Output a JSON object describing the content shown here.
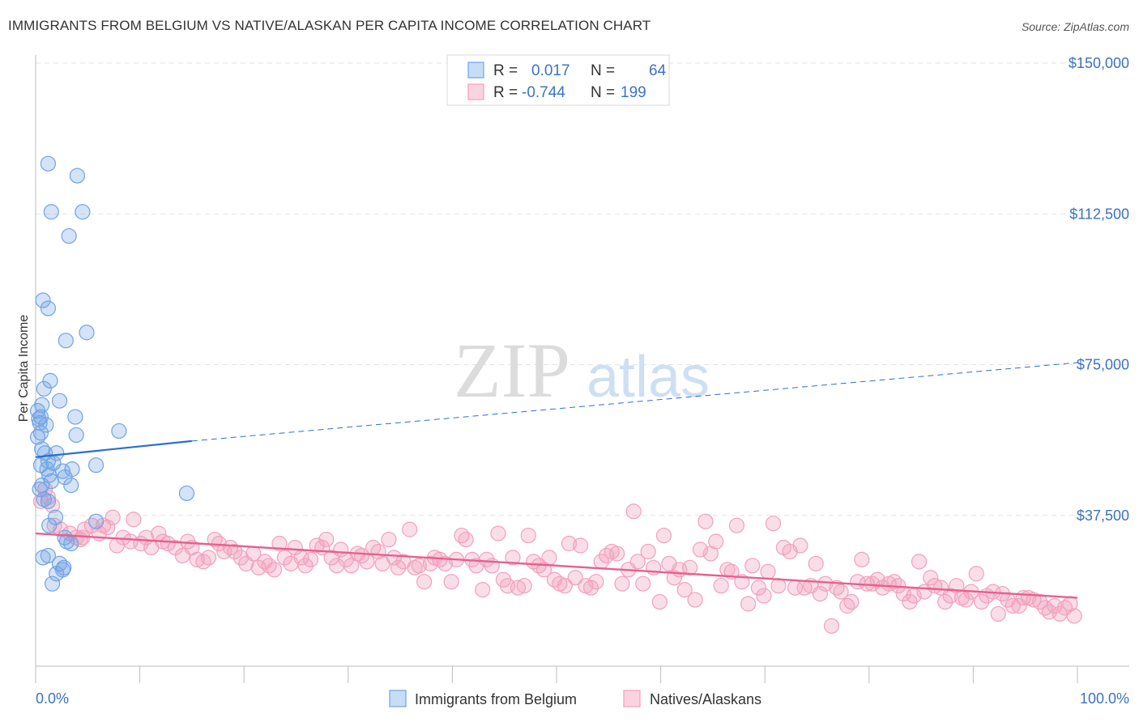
{
  "title": "IMMIGRANTS FROM BELGIUM VS NATIVE/ALASKAN PER CAPITA INCOME CORRELATION CHART",
  "source": "Source: ZipAtlas.com",
  "watermark": {
    "zip": "ZIP",
    "atlas": "atlas"
  },
  "chart_data": {
    "type": "scatter",
    "title": "IMMIGRANTS FROM BELGIUM VS NATIVE/ALASKAN PER CAPITA INCOME CORRELATION CHART",
    "xlabel": "",
    "ylabel": "Per Capita Income",
    "xlim": [
      0,
      100
    ],
    "ylim": [
      0,
      150000
    ],
    "x_tick_labels": [
      "0.0%",
      "100.0%"
    ],
    "y_ticks": [
      37500,
      75000,
      112500,
      150000
    ],
    "y_tick_labels": [
      "$37,500",
      "$75,000",
      "$112,500",
      "$150,000"
    ],
    "legend": {
      "position": "top-center",
      "rows": [
        {
          "r_label": "R =",
          "r_value": "0.017",
          "n_label": "N =",
          "n_value": "64"
        },
        {
          "r_label": "R =",
          "r_value": "-0.744",
          "n_label": "N =",
          "n_value": "199"
        }
      ]
    },
    "series": [
      {
        "name": "Immigrants from Belgium",
        "color": "#6fa3e6",
        "line_color": "#2a6fd0",
        "trend": {
          "x": [
            0,
            15
          ],
          "y": [
            52000,
            56000
          ],
          "dashed_extension_to": [
            100,
            75500
          ]
        },
        "points": [
          [
            1.2,
            125000
          ],
          [
            4.0,
            122000
          ],
          [
            1.5,
            113000
          ],
          [
            4.5,
            113000
          ],
          [
            3.2,
            107000
          ],
          [
            0.7,
            91000
          ],
          [
            1.2,
            89000
          ],
          [
            4.9,
            83000
          ],
          [
            2.9,
            81000
          ],
          [
            1.4,
            71000
          ],
          [
            0.8,
            69000
          ],
          [
            2.3,
            66000
          ],
          [
            0.6,
            65000
          ],
          [
            0.2,
            63500
          ],
          [
            0.5,
            62000
          ],
          [
            0.3,
            61500
          ],
          [
            0.4,
            60500
          ],
          [
            1.0,
            60000
          ],
          [
            3.8,
            62000
          ],
          [
            0.5,
            58000
          ],
          [
            3.9,
            57500
          ],
          [
            8.0,
            58500
          ],
          [
            0.2,
            57000
          ],
          [
            0.6,
            54000
          ],
          [
            0.9,
            53000
          ],
          [
            2.0,
            53000
          ],
          [
            1.2,
            51000
          ],
          [
            1.7,
            50500
          ],
          [
            0.5,
            50000
          ],
          [
            3.5,
            49000
          ],
          [
            5.8,
            50000
          ],
          [
            1.1,
            49000
          ],
          [
            2.6,
            48500
          ],
          [
            1.3,
            47500
          ],
          [
            2.8,
            47000
          ],
          [
            1.5,
            46000
          ],
          [
            0.6,
            45000
          ],
          [
            3.4,
            45000
          ],
          [
            0.4,
            44000
          ],
          [
            14.5,
            43000
          ],
          [
            0.8,
            41500
          ],
          [
            1.2,
            41000
          ],
          [
            1.9,
            37000
          ],
          [
            5.8,
            36000
          ],
          [
            1.3,
            35000
          ],
          [
            2.8,
            32000
          ],
          [
            3.0,
            31000
          ],
          [
            3.4,
            30500
          ],
          [
            0.7,
            27000
          ],
          [
            1.2,
            27500
          ],
          [
            2.3,
            25500
          ],
          [
            2.7,
            24500
          ],
          [
            2.6,
            24000
          ],
          [
            2.0,
            23000
          ],
          [
            1.6,
            20500
          ]
        ]
      },
      {
        "name": "Natives/Alaskans",
        "color": "#f2a0bb",
        "line_color": "#e85f8f",
        "trend": {
          "x": [
            0,
            100
          ],
          "y": [
            33000,
            17000
          ]
        },
        "points": [
          [
            0.5,
            41000
          ],
          [
            0.9,
            44000
          ],
          [
            1.2,
            42000
          ],
          [
            1.6,
            40000
          ],
          [
            1.8,
            35000
          ],
          [
            2.4,
            34000
          ],
          [
            3.3,
            33000
          ],
          [
            3.9,
            32000
          ],
          [
            4.3,
            31500
          ],
          [
            4.7,
            34000
          ],
          [
            5.4,
            35000
          ],
          [
            6.1,
            33000
          ],
          [
            6.9,
            34500
          ],
          [
            7.4,
            37000
          ],
          [
            7.8,
            30000
          ],
          [
            8.4,
            32000
          ],
          [
            9.1,
            31000
          ],
          [
            9.4,
            36500
          ],
          [
            10.1,
            30500
          ],
          [
            10.6,
            32000
          ],
          [
            11.1,
            29500
          ],
          [
            11.8,
            33000
          ],
          [
            12.2,
            31000
          ],
          [
            12.7,
            30500
          ],
          [
            13.4,
            29500
          ],
          [
            14.1,
            27500
          ],
          [
            14.6,
            31000
          ],
          [
            15.0,
            29500
          ],
          [
            15.5,
            26500
          ],
          [
            16.1,
            26000
          ],
          [
            16.6,
            27000
          ],
          [
            17.2,
            31500
          ],
          [
            17.6,
            30500
          ],
          [
            18.1,
            28500
          ],
          [
            18.7,
            29500
          ],
          [
            19.1,
            28500
          ],
          [
            19.7,
            27000
          ],
          [
            20.2,
            25500
          ],
          [
            20.9,
            28000
          ],
          [
            21.4,
            24500
          ],
          [
            22.0,
            26000
          ],
          [
            22.4,
            25000
          ],
          [
            22.9,
            24000
          ],
          [
            23.4,
            30500
          ],
          [
            23.9,
            27000
          ],
          [
            24.5,
            25500
          ],
          [
            24.9,
            29500
          ],
          [
            25.5,
            27000
          ],
          [
            25.9,
            25000
          ],
          [
            26.4,
            26500
          ],
          [
            27.0,
            30000
          ],
          [
            27.5,
            29500
          ],
          [
            27.9,
            31500
          ],
          [
            28.4,
            27000
          ],
          [
            28.9,
            25000
          ],
          [
            29.3,
            29000
          ],
          [
            29.8,
            26500
          ],
          [
            30.3,
            25000
          ],
          [
            30.9,
            28000
          ],
          [
            31.3,
            27500
          ],
          [
            31.8,
            26000
          ],
          [
            32.4,
            29500
          ],
          [
            32.9,
            28500
          ],
          [
            33.3,
            25500
          ],
          [
            33.9,
            31500
          ],
          [
            34.4,
            27000
          ],
          [
            34.8,
            24500
          ],
          [
            35.3,
            26000
          ],
          [
            35.9,
            34000
          ],
          [
            36.4,
            24500
          ],
          [
            36.8,
            25000
          ],
          [
            37.3,
            21000
          ],
          [
            37.9,
            25500
          ],
          [
            38.3,
            27000
          ],
          [
            38.8,
            26500
          ],
          [
            39.3,
            25500
          ],
          [
            39.9,
            21000
          ],
          [
            40.4,
            26500
          ],
          [
            40.9,
            32500
          ],
          [
            41.3,
            31500
          ],
          [
            41.9,
            26500
          ],
          [
            42.3,
            25000
          ],
          [
            42.9,
            19000
          ],
          [
            43.3,
            26500
          ],
          [
            43.8,
            25000
          ],
          [
            44.4,
            33000
          ],
          [
            44.9,
            21500
          ],
          [
            45.3,
            20000
          ],
          [
            45.8,
            27000
          ],
          [
            46.3,
            19500
          ],
          [
            46.9,
            20000
          ],
          [
            47.3,
            32500
          ],
          [
            47.8,
            26000
          ],
          [
            48.3,
            25000
          ],
          [
            48.8,
            24000
          ],
          [
            49.3,
            27000
          ],
          [
            49.8,
            21500
          ],
          [
            50.3,
            20500
          ],
          [
            50.8,
            20000
          ],
          [
            51.2,
            30500
          ],
          [
            51.8,
            22000
          ],
          [
            52.3,
            30000
          ],
          [
            52.8,
            20000
          ],
          [
            53.3,
            19500
          ],
          [
            53.8,
            21000
          ],
          [
            54.3,
            26000
          ],
          [
            54.8,
            27500
          ],
          [
            55.3,
            28500
          ],
          [
            55.8,
            28000
          ],
          [
            56.3,
            20500
          ],
          [
            56.9,
            24000
          ],
          [
            57.4,
            38500
          ],
          [
            57.8,
            26000
          ],
          [
            58.3,
            20500
          ],
          [
            58.8,
            28500
          ],
          [
            59.3,
            24500
          ],
          [
            59.9,
            16000
          ],
          [
            60.3,
            32500
          ],
          [
            60.8,
            25500
          ],
          [
            61.3,
            22000
          ],
          [
            61.8,
            24000
          ],
          [
            62.3,
            19000
          ],
          [
            62.8,
            24500
          ],
          [
            63.3,
            16500
          ],
          [
            63.8,
            29000
          ],
          [
            64.3,
            36000
          ],
          [
            64.8,
            28000
          ],
          [
            65.3,
            31000
          ],
          [
            65.8,
            20000
          ],
          [
            66.4,
            24000
          ],
          [
            66.8,
            23500
          ],
          [
            67.3,
            35000
          ],
          [
            67.8,
            21000
          ],
          [
            68.4,
            15500
          ],
          [
            68.8,
            25000
          ],
          [
            69.4,
            19500
          ],
          [
            69.9,
            17500
          ],
          [
            70.3,
            23500
          ],
          [
            70.8,
            35500
          ],
          [
            71.3,
            20000
          ],
          [
            71.8,
            29500
          ],
          [
            72.4,
            28500
          ],
          [
            72.9,
            19500
          ],
          [
            73.4,
            30000
          ],
          [
            73.8,
            19500
          ],
          [
            74.4,
            20000
          ],
          [
            74.9,
            25500
          ],
          [
            75.3,
            18000
          ],
          [
            75.8,
            20500
          ],
          [
            76.4,
            10000
          ],
          [
            76.9,
            19500
          ],
          [
            77.3,
            18500
          ],
          [
            77.9,
            15000
          ],
          [
            78.3,
            16000
          ],
          [
            78.9,
            21000
          ],
          [
            79.3,
            26500
          ],
          [
            79.8,
            20500
          ],
          [
            80.3,
            20500
          ],
          [
            80.8,
            21500
          ],
          [
            81.3,
            19500
          ],
          [
            81.9,
            20500
          ],
          [
            82.4,
            21000
          ],
          [
            82.8,
            20000
          ],
          [
            83.3,
            18000
          ],
          [
            83.9,
            16000
          ],
          [
            84.3,
            17500
          ],
          [
            84.8,
            26000
          ],
          [
            85.3,
            18500
          ],
          [
            85.9,
            22000
          ],
          [
            86.3,
            20000
          ],
          [
            86.9,
            19500
          ],
          [
            87.3,
            16000
          ],
          [
            87.8,
            17500
          ],
          [
            88.4,
            20000
          ],
          [
            88.9,
            17000
          ],
          [
            89.3,
            16500
          ],
          [
            89.8,
            18500
          ],
          [
            90.3,
            23000
          ],
          [
            90.8,
            16000
          ],
          [
            91.3,
            17500
          ],
          [
            91.9,
            18500
          ],
          [
            92.4,
            13000
          ],
          [
            92.8,
            18000
          ],
          [
            93.3,
            16500
          ],
          [
            93.8,
            15000
          ],
          [
            94.4,
            15000
          ],
          [
            94.8,
            17000
          ],
          [
            95.3,
            17000
          ],
          [
            95.8,
            16500
          ],
          [
            96.4,
            16000
          ],
          [
            96.9,
            14500
          ],
          [
            97.3,
            13500
          ],
          [
            97.8,
            15000
          ],
          [
            98.3,
            13000
          ],
          [
            98.8,
            14500
          ],
          [
            99.3,
            15500
          ],
          [
            99.7,
            12500
          ],
          [
            4.5,
            32000
          ],
          [
            6.5,
            35000
          ]
        ]
      }
    ]
  },
  "bottom_legend": [
    {
      "label": "Immigrants from Belgium",
      "color": "#6fa3e6"
    },
    {
      "label": "Natives/Alaskans",
      "color": "#f2a0bb"
    }
  ]
}
